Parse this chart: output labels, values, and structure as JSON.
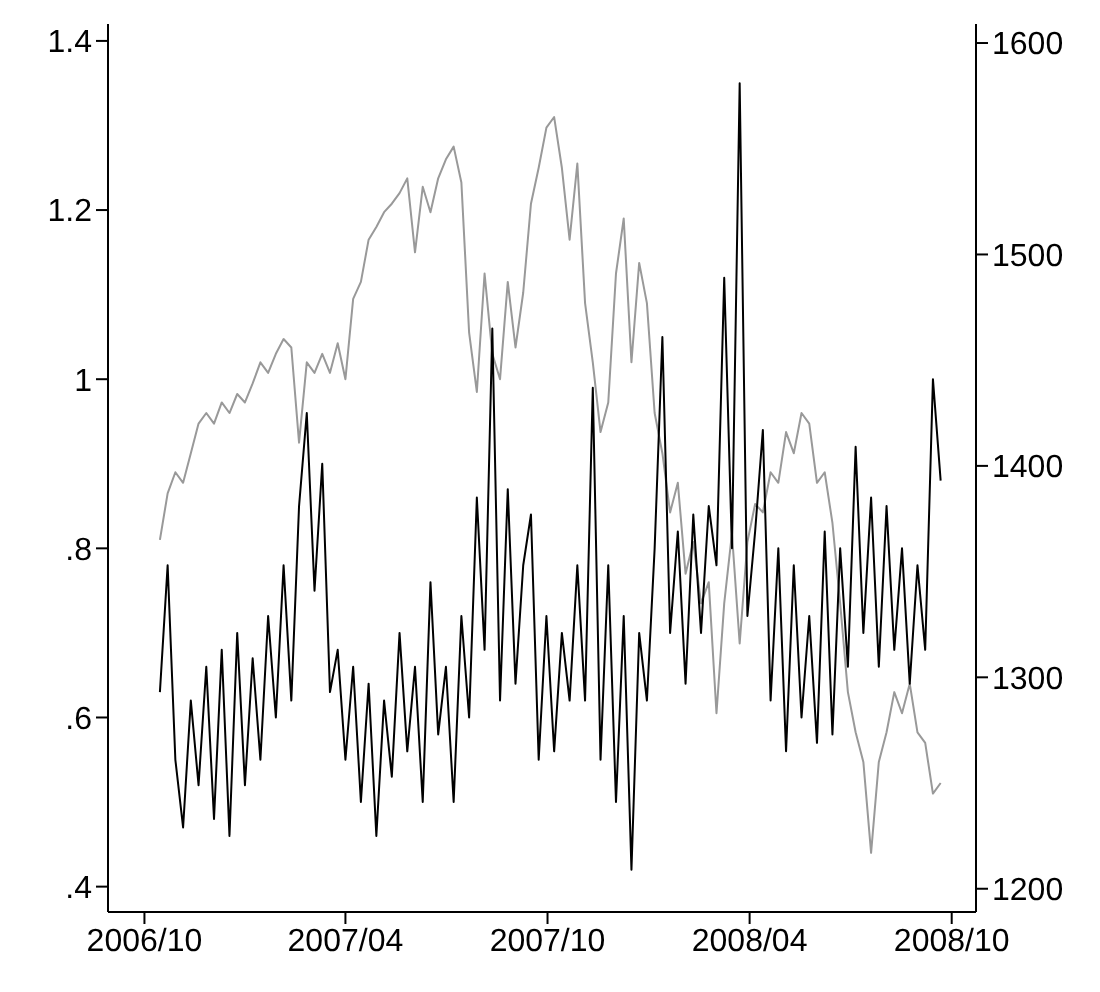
{
  "chart_data": {
    "type": "line",
    "x": [
      "2006-10-15",
      "2006-10-22",
      "2006-10-29",
      "2006-11-05",
      "2006-11-12",
      "2006-11-19",
      "2006-11-26",
      "2006-12-03",
      "2006-12-10",
      "2006-12-17",
      "2006-12-24",
      "2006-12-31",
      "2007-01-07",
      "2007-01-14",
      "2007-01-21",
      "2007-01-28",
      "2007-02-04",
      "2007-02-11",
      "2007-02-18",
      "2007-02-25",
      "2007-03-04",
      "2007-03-11",
      "2007-03-18",
      "2007-03-25",
      "2007-04-01",
      "2007-04-08",
      "2007-04-15",
      "2007-04-22",
      "2007-04-29",
      "2007-05-06",
      "2007-05-13",
      "2007-05-20",
      "2007-05-27",
      "2007-06-03",
      "2007-06-10",
      "2007-06-17",
      "2007-06-24",
      "2007-07-01",
      "2007-07-08",
      "2007-07-15",
      "2007-07-22",
      "2007-07-29",
      "2007-08-05",
      "2007-08-12",
      "2007-08-19",
      "2007-08-26",
      "2007-09-02",
      "2007-09-09",
      "2007-09-16",
      "2007-09-23",
      "2007-09-30",
      "2007-10-07",
      "2007-10-14",
      "2007-10-21",
      "2007-10-28",
      "2007-11-04",
      "2007-11-11",
      "2007-11-18",
      "2007-11-25",
      "2007-12-02",
      "2007-12-09",
      "2007-12-16",
      "2007-12-23",
      "2007-12-30",
      "2008-01-06",
      "2008-01-13",
      "2008-01-20",
      "2008-01-27",
      "2008-02-03",
      "2008-02-10",
      "2008-02-17",
      "2008-02-24",
      "2008-03-02",
      "2008-03-09",
      "2008-03-16",
      "2008-03-23",
      "2008-03-30",
      "2008-04-06",
      "2008-04-13",
      "2008-04-20",
      "2008-04-27",
      "2008-05-04",
      "2008-05-11",
      "2008-05-18",
      "2008-05-25",
      "2008-06-01",
      "2008-06-08",
      "2008-06-15",
      "2008-06-22",
      "2008-06-29",
      "2008-07-06",
      "2008-07-13",
      "2008-07-20",
      "2008-07-27",
      "2008-08-03",
      "2008-08-10",
      "2008-08-17",
      "2008-08-24",
      "2008-08-31",
      "2008-09-07",
      "2008-09-14",
      "2008-09-21"
    ],
    "series": [
      {
        "color": "#999999",
        "axis": "y2",
        "values": [
          1365,
          1387,
          1397,
          1392,
          1406,
          1420,
          1425,
          1420,
          1430,
          1425,
          1434,
          1430,
          1439,
          1449,
          1444,
          1453,
          1460,
          1456,
          1411,
          1449,
          1444,
          1453,
          1444,
          1458,
          1441,
          1479,
          1487,
          1507,
          1513,
          1520,
          1524,
          1529,
          1536,
          1501,
          1532,
          1520,
          1536,
          1545,
          1551,
          1534,
          1463,
          1435,
          1491,
          1453,
          1441,
          1487,
          1456,
          1482,
          1524,
          1541,
          1560,
          1565,
          1541,
          1507,
          1543,
          1477,
          1449,
          1416,
          1430,
          1491,
          1517,
          1449,
          1496,
          1477,
          1425,
          1406,
          1378,
          1392,
          1349,
          1364,
          1335,
          1345,
          1283,
          1335,
          1368,
          1316,
          1364,
          1382,
          1378,
          1397,
          1392,
          1416,
          1406,
          1425,
          1420,
          1392,
          1397,
          1373,
          1335,
          1293,
          1274,
          1260,
          1217,
          1260,
          1274,
          1293,
          1283,
          1297,
          1274,
          1269,
          1245,
          1250
        ]
      },
      {
        "color": "#000000",
        "values": [
          0.63,
          0.78,
          0.55,
          0.47,
          0.62,
          0.52,
          0.66,
          0.48,
          0.68,
          0.46,
          0.7,
          0.52,
          0.67,
          0.55,
          0.72,
          0.6,
          0.78,
          0.62,
          0.85,
          0.96,
          0.75,
          0.9,
          0.63,
          0.68,
          0.55,
          0.66,
          0.5,
          0.64,
          0.46,
          0.62,
          0.53,
          0.7,
          0.56,
          0.66,
          0.5,
          0.76,
          0.58,
          0.66,
          0.5,
          0.72,
          0.6,
          0.86,
          0.68,
          1.06,
          0.62,
          0.87,
          0.64,
          0.78,
          0.84,
          0.55,
          0.72,
          0.56,
          0.7,
          0.62,
          0.78,
          0.62,
          0.99,
          0.55,
          0.78,
          0.5,
          0.72,
          0.42,
          0.7,
          0.62,
          0.8,
          1.05,
          0.7,
          0.82,
          0.64,
          0.84,
          0.7,
          0.85,
          0.78,
          1.12,
          0.8,
          1.35,
          0.72,
          0.82,
          0.94,
          0.62,
          0.8,
          0.56,
          0.78,
          0.6,
          0.72,
          0.57,
          0.82,
          0.58,
          0.8,
          0.66,
          0.92,
          0.7,
          0.86,
          0.66,
          0.85,
          0.68,
          0.8,
          0.64,
          0.78,
          0.68,
          1.0,
          0.88
        ]
      }
    ],
    "xlim": [
      "2006-08-29",
      "2008-10-23"
    ],
    "xticks": [
      {
        "value": "2006-10-01",
        "label": "2006/10"
      },
      {
        "value": "2007-04-01",
        "label": "2007/04"
      },
      {
        "value": "2007-10-01",
        "label": "2007/10"
      },
      {
        "value": "2008-04-01",
        "label": "2008/04"
      },
      {
        "value": "2008-10-01",
        "label": "2008/10"
      }
    ],
    "ylim": [
      0.37,
      1.42
    ],
    "yticks": [
      {
        "value": 0.4,
        "label": ".4"
      },
      {
        "value": 0.6,
        "label": ".6"
      },
      {
        "value": 0.8,
        "label": ".8"
      },
      1,
      1.2,
      1.4
    ],
    "y2lim": [
      1189,
      1609
    ],
    "y2ticks": [
      1200,
      1300,
      1400,
      1500,
      1600
    ],
    "grid": false,
    "legend": false,
    "marker": "none",
    "line_style": "solid"
  }
}
